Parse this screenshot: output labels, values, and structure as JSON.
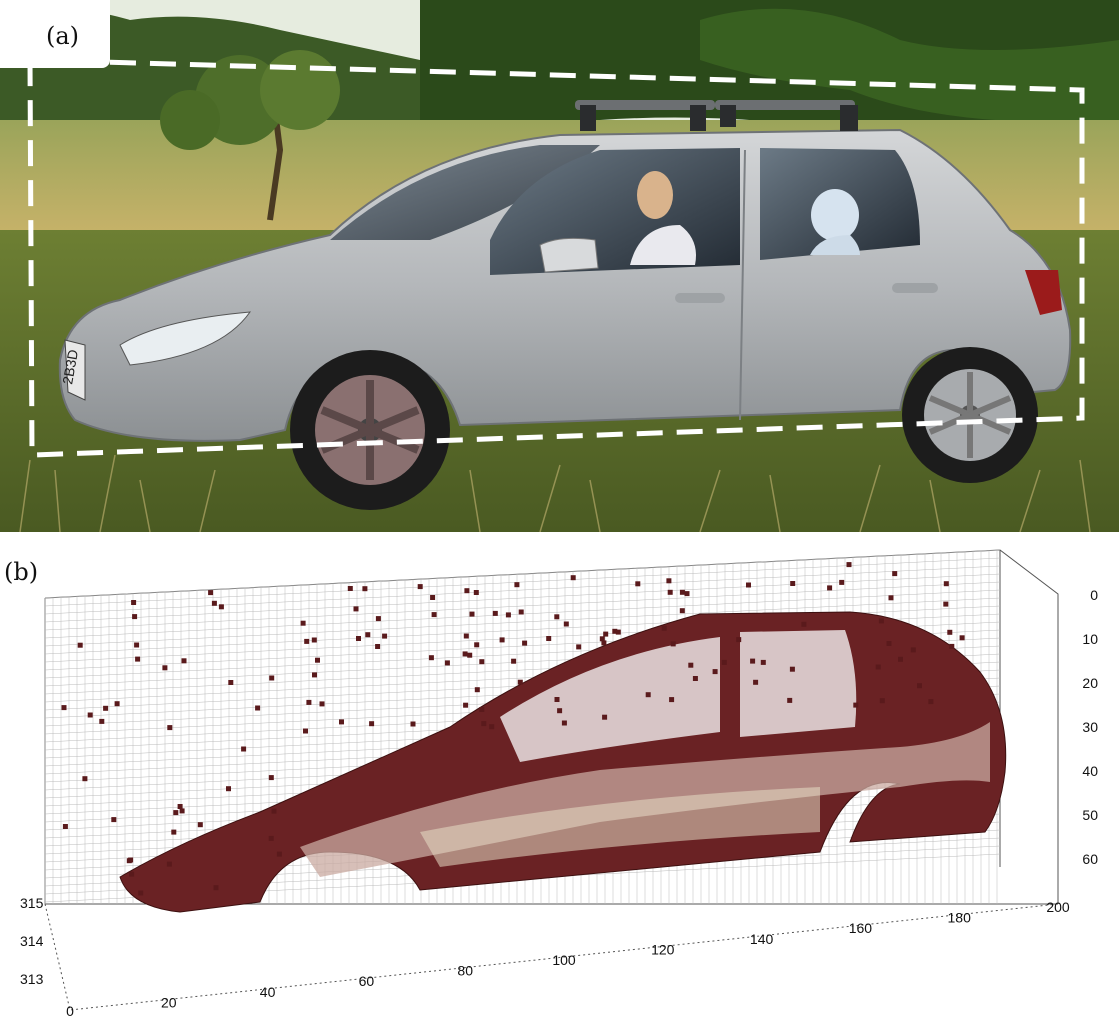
{
  "panels": {
    "a": {
      "label": "(a)"
    },
    "b": {
      "label": "(b)"
    }
  },
  "car": {
    "plate_text": "2B3D"
  },
  "axes": {
    "x_ticks": [
      "0",
      "20",
      "40",
      "60",
      "80",
      "100",
      "120",
      "140",
      "160",
      "180",
      "200"
    ],
    "y_ticks": [
      "0",
      "10",
      "20",
      "30",
      "40",
      "50",
      "60"
    ],
    "z_ticks": [
      "315",
      "314",
      "313"
    ]
  },
  "colors": {
    "sky": "#e8efe6",
    "trees": "#2f5a1f",
    "grass": "#7a8a3a",
    "car_body": "#b9bcbf",
    "dashed_box": "#ffffff",
    "surface_dark": "#5a1a1c",
    "surface_light": "#e8e8c8"
  }
}
